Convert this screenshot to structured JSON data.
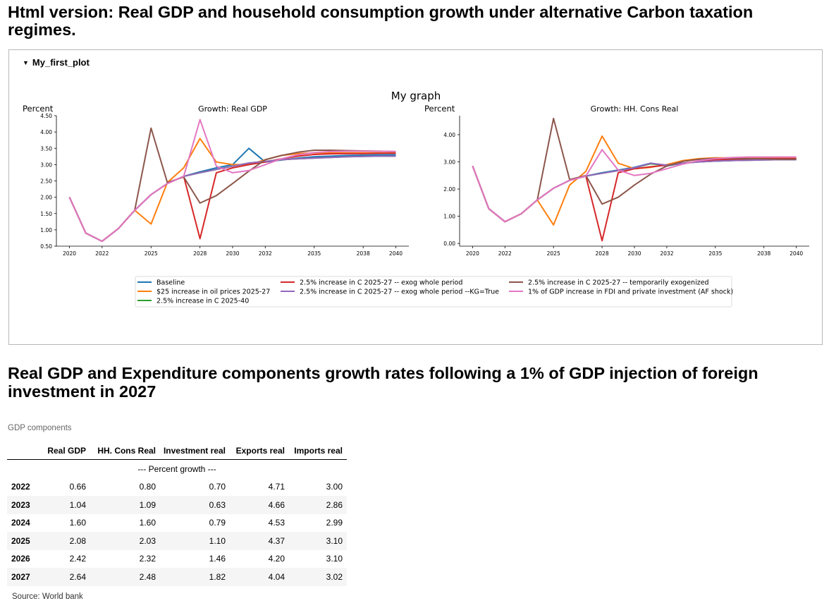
{
  "page": {
    "title": "Html version: Real GDP and household consumption growth under alternative Carbon taxation regimes.",
    "plot_toggle_label": "My_first_plot",
    "section_title": "Real GDP and Expenditure components growth rates following a 1% of GDP injection of foreign investment in 2027"
  },
  "chart_data": {
    "type": "line",
    "suptitle": "My graph",
    "x": [
      2020,
      2021,
      2022,
      2023,
      2024,
      2025,
      2026,
      2027,
      2028,
      2029,
      2030,
      2031,
      2032,
      2033,
      2034,
      2035,
      2036,
      2037,
      2038,
      2039,
      2040
    ],
    "xticks": [
      2020,
      2022,
      2025,
      2028,
      2030,
      2032,
      2035,
      2038,
      2040
    ],
    "legend": {
      "position": "bottom-center",
      "entries": [
        {
          "label": "Baseline",
          "color": "#1f77b4"
        },
        {
          "label": "$25 increase in oil prices 2025-27",
          "color": "#ff7f0e"
        },
        {
          "label": "2.5% increase in C 2025-40",
          "color": "#2ca02c"
        },
        {
          "label": "2.5% increase in C 2025-27 -- exog whole period",
          "color": "#d62728"
        },
        {
          "label": "2.5% increase in C 2025-27 -- exog whole period --KG=True",
          "color": "#9467bd"
        },
        {
          "label": "2.5% increase in C 2025-27 -- temporarily exogenized",
          "color": "#8c564b"
        },
        {
          "label": "1% of GDP increase in FDI and private investment (AF shock)",
          "color": "#e377c2"
        }
      ]
    },
    "panels": [
      {
        "title": "Growth: Real GDP",
        "ylabel": "Percent",
        "ylim": [
          0.5,
          4.5
        ],
        "yticks": [
          "0.50",
          "1.00",
          "1.50",
          "2.00",
          "2.50",
          "3.00",
          "3.50",
          "4.00",
          "4.50"
        ],
        "series": [
          {
            "name": "Baseline",
            "color": "#1f77b4",
            "values": [
              2.0,
              0.9,
              0.65,
              1.04,
              1.6,
              2.08,
              2.42,
              2.64,
              2.78,
              2.9,
              3.0,
              3.5,
              3.08,
              3.14,
              3.2,
              3.24,
              3.26,
              3.28,
              3.29,
              3.3,
              3.3
            ]
          },
          {
            "name": "$25 increase in oil prices 2025-27",
            "color": "#ff7f0e",
            "values": [
              2.0,
              0.9,
              0.65,
              1.04,
              1.6,
              1.18,
              2.45,
              2.9,
              3.8,
              3.08,
              3.0,
              3.0,
              3.15,
              3.28,
              3.34,
              3.36,
              3.36,
              3.36,
              3.36,
              3.36,
              3.36
            ]
          },
          {
            "name": "2.5% increase in C 2025-40",
            "color": "#2ca02c",
            "values": [
              2.0,
              0.9,
              0.65,
              1.04,
              1.6,
              2.08,
              2.42,
              2.64,
              2.75,
              2.85,
              2.95,
              3.05,
              3.1,
              3.15,
              3.18,
              3.2,
              3.22,
              3.24,
              3.25,
              3.26,
              3.26
            ]
          },
          {
            "name": "2.5% increase in C 2025-27 -- exog whole period",
            "color": "#d62728",
            "values": [
              2.0,
              0.9,
              0.65,
              1.04,
              1.6,
              2.08,
              2.42,
              2.64,
              0.73,
              2.75,
              2.9,
              3.0,
              3.08,
              3.18,
              3.26,
              3.31,
              3.33,
              3.34,
              3.34,
              3.35,
              3.35
            ]
          },
          {
            "name": "2.5% increase in C 2025-27 -- exog whole period --KG=True",
            "color": "#9467bd",
            "values": [
              2.0,
              0.9,
              0.65,
              1.04,
              1.6,
              2.08,
              2.42,
              2.64,
              2.75,
              2.85,
              2.95,
              3.05,
              3.1,
              3.15,
              3.18,
              3.2,
              3.22,
              3.24,
              3.25,
              3.26,
              3.26
            ]
          },
          {
            "name": "2.5% increase in C 2025-27 -- temporarily exogenized",
            "color": "#8c564b",
            "values": [
              2.0,
              0.9,
              0.65,
              1.04,
              1.6,
              4.12,
              2.45,
              2.62,
              1.82,
              2.05,
              2.42,
              2.8,
              3.15,
              3.28,
              3.38,
              3.44,
              3.44,
              3.43,
              3.42,
              3.41,
              3.4
            ]
          },
          {
            "name": "1% of GDP increase in FDI and private investment (AF shock)",
            "color": "#e377c2",
            "values": [
              2.0,
              0.9,
              0.65,
              1.04,
              1.6,
              2.08,
              2.42,
              2.64,
              4.38,
              2.95,
              2.75,
              2.82,
              3.0,
              3.18,
              3.3,
              3.37,
              3.4,
              3.41,
              3.41,
              3.41,
              3.4
            ]
          }
        ]
      },
      {
        "title": "Growth: HH. Cons Real",
        "ylabel": "Percent",
        "ylim": [
          -0.1,
          4.7
        ],
        "yticks": [
          "0.00",
          "1.00",
          "2.00",
          "3.00",
          "4.00"
        ],
        "ytick_values": [
          0,
          1,
          2,
          3,
          4
        ],
        "series": [
          {
            "name": "Baseline",
            "color": "#1f77b4",
            "values": [
              2.85,
              1.28,
              0.8,
              1.09,
              1.6,
              2.03,
              2.32,
              2.48,
              2.6,
              2.7,
              2.8,
              2.95,
              2.85,
              2.95,
              3.0,
              3.03,
              3.05,
              3.07,
              3.08,
              3.09,
              3.1
            ]
          },
          {
            "name": "$25 increase in oil prices 2025-27",
            "color": "#ff7f0e",
            "values": [
              2.85,
              1.28,
              0.8,
              1.09,
              1.6,
              0.68,
              2.15,
              2.65,
              3.95,
              2.95,
              2.75,
              2.8,
              2.9,
              3.05,
              3.12,
              3.15,
              3.15,
              3.15,
              3.15,
              3.15,
              3.15
            ]
          },
          {
            "name": "2.5% increase in C 2025-40",
            "color": "#2ca02c",
            "values": [
              2.85,
              1.28,
              0.8,
              1.09,
              1.6,
              2.03,
              2.32,
              2.48,
              2.58,
              2.68,
              2.78,
              2.93,
              2.87,
              2.95,
              3.0,
              3.03,
              3.05,
              3.06,
              3.07,
              3.08,
              3.08
            ]
          },
          {
            "name": "2.5% increase in C 2025-27 -- exog whole period",
            "color": "#d62728",
            "values": [
              2.85,
              1.28,
              0.8,
              1.09,
              1.6,
              2.03,
              2.32,
              2.48,
              0.1,
              2.6,
              2.75,
              2.82,
              2.88,
              2.95,
              3.02,
              3.08,
              3.1,
              3.11,
              3.12,
              3.12,
              3.12
            ]
          },
          {
            "name": "2.5% increase in C 2025-27 -- exog whole period --KG=True",
            "color": "#9467bd",
            "values": [
              2.85,
              1.28,
              0.8,
              1.09,
              1.6,
              2.03,
              2.32,
              2.48,
              2.58,
              2.68,
              2.78,
              2.95,
              2.88,
              2.95,
              3.0,
              3.03,
              3.05,
              3.06,
              3.07,
              3.08,
              3.08
            ]
          },
          {
            "name": "2.5% increase in C 2025-27 -- temporarily exogenized",
            "color": "#8c564b",
            "values": [
              2.85,
              1.28,
              0.8,
              1.09,
              1.6,
              4.6,
              2.35,
              2.5,
              1.45,
              1.7,
              2.15,
              2.55,
              2.85,
              3.02,
              3.1,
              3.13,
              3.13,
              3.12,
              3.11,
              3.1,
              3.1
            ]
          },
          {
            "name": "1% of GDP increase in FDI and private investment (AF shock)",
            "color": "#e377c2",
            "values": [
              2.85,
              1.28,
              0.8,
              1.09,
              1.6,
              2.03,
              2.32,
              2.48,
              3.45,
              2.7,
              2.5,
              2.58,
              2.75,
              2.92,
              3.05,
              3.12,
              3.16,
              3.18,
              3.18,
              3.18,
              3.18
            ]
          }
        ]
      }
    ]
  },
  "table": {
    "caption": "GDP components",
    "columns": [
      "Real GDP",
      "HH. Cons Real",
      "Investment real",
      "Exports real",
      "Imports real"
    ],
    "unit_note": "--- Percent growth ---",
    "rows": [
      {
        "year": "2022",
        "cells": [
          "0.66",
          "0.80",
          "0.70",
          "4.71",
          "3.00"
        ]
      },
      {
        "year": "2023",
        "cells": [
          "1.04",
          "1.09",
          "0.63",
          "4.66",
          "2.86"
        ]
      },
      {
        "year": "2024",
        "cells": [
          "1.60",
          "1.60",
          "0.79",
          "4.53",
          "2.99"
        ]
      },
      {
        "year": "2025",
        "cells": [
          "2.08",
          "2.03",
          "1.10",
          "4.37",
          "3.10"
        ]
      },
      {
        "year": "2026",
        "cells": [
          "2.42",
          "2.32",
          "1.46",
          "4.20",
          "3.10"
        ]
      },
      {
        "year": "2027",
        "cells": [
          "2.64",
          "2.48",
          "1.82",
          "4.04",
          "3.02"
        ]
      }
    ],
    "source": "Source: World bank"
  }
}
